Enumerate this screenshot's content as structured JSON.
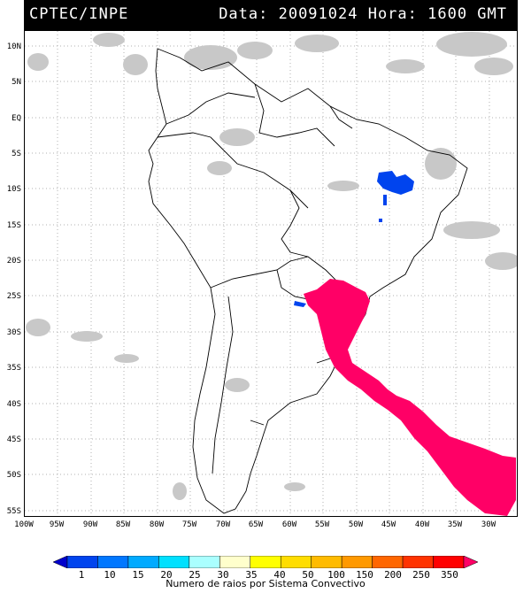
{
  "header": {
    "left": "CPTEC/INPE",
    "right": "Data: 20091024 Hora: 1600 GMT"
  },
  "yticks": [
    "10N",
    "5N",
    "EQ",
    "5S",
    "10S",
    "15S",
    "20S",
    "25S",
    "30S",
    "35S",
    "40S",
    "45S",
    "50S",
    "55S"
  ],
  "xticks": [
    "100W",
    "95W",
    "90W",
    "85W",
    "80W",
    "75W",
    "70W",
    "65W",
    "60W",
    "55W",
    "50W",
    "45W",
    "40W",
    "35W",
    "30W"
  ],
  "colorbar": {
    "ticks": [
      "1",
      "10",
      "15",
      "20",
      "25",
      "30",
      "35",
      "40",
      "50",
      "100",
      "150",
      "200",
      "250",
      "350"
    ],
    "colors": [
      "#0000cc",
      "#0044ee",
      "#0077ff",
      "#00aaff",
      "#00e0ff",
      "#aaffff",
      "#ffffcc",
      "#ffff00",
      "#ffdd00",
      "#ffbb00",
      "#ff9900",
      "#ff6600",
      "#ff3300",
      "#ff0000",
      "#ff0066"
    ],
    "caption": "Numero de raios por Sistema Convectivo"
  },
  "colors": {
    "lightning_high": "#ff0066",
    "lightning_low": "#0044ee",
    "cloud": "#c8c8c8"
  }
}
